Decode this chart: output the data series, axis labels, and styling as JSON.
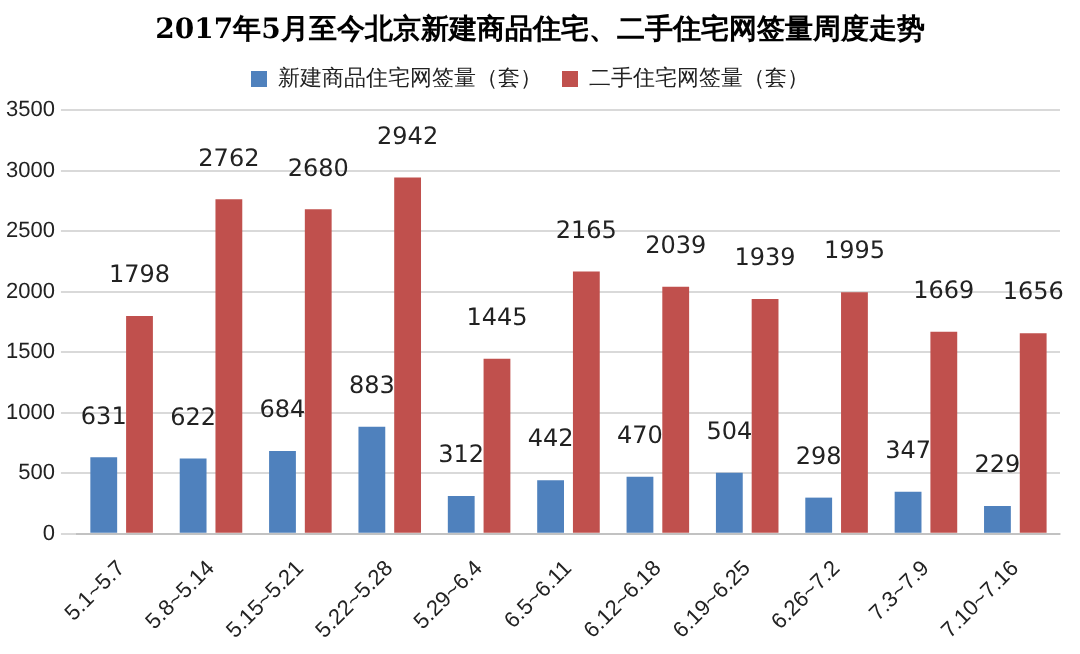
{
  "chart_data": {
    "type": "bar",
    "title": "2017年5月至今北京新建商品住宅、二手住宅网签量周度走势",
    "categories": [
      "5.1~5.7",
      "5.8~5.14",
      "5.15~5.21",
      "5.22~5.28",
      "5.29~6.4",
      "6.5~6.11",
      "6.12~6.18",
      "6.19~6.25",
      "6.26~7.2",
      "7.3~7.9",
      "7.10~7.16"
    ],
    "series": [
      {
        "name": "新建商品住宅网签量（套）",
        "color": "#4f81bd",
        "values": [
          631,
          622,
          684,
          883,
          312,
          442,
          470,
          504,
          298,
          347,
          229
        ]
      },
      {
        "name": "二手住宅网签量（套）",
        "color": "#c0504d",
        "values": [
          1798,
          2762,
          2680,
          2942,
          1445,
          2165,
          2039,
          1939,
          1995,
          1669,
          1656
        ]
      }
    ],
    "ylim": [
      0,
      3500
    ],
    "yticks": [
      0,
      500,
      1000,
      1500,
      2000,
      2500,
      3000,
      3500
    ],
    "grid": "y",
    "legend": "top",
    "data_labels": true
  }
}
